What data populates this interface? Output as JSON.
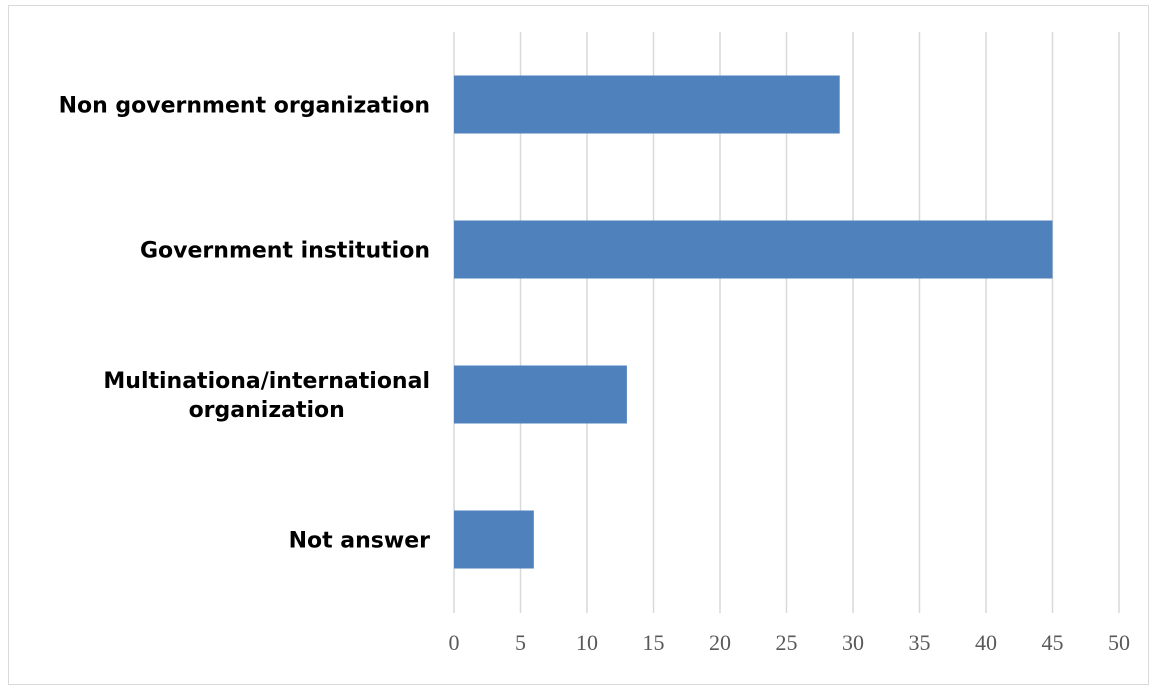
{
  "chart_data": {
    "type": "bar",
    "orientation": "horizontal",
    "categories": [
      "Non government organization",
      "Government institution",
      "Multinationa/international organization",
      "Not answer"
    ],
    "category_label_lines": [
      [
        "Non government organization"
      ],
      [
        "Government institution"
      ],
      [
        "Multinationa/international",
        "organization"
      ],
      [
        "Not answer"
      ]
    ],
    "values": [
      29,
      45,
      13,
      6
    ],
    "xlim": [
      0,
      50
    ],
    "x_ticks": [
      "0",
      "5",
      "10",
      "15",
      "20",
      "25",
      "30",
      "35",
      "40",
      "45",
      "50"
    ],
    "title": "",
    "xlabel": "",
    "ylabel": "",
    "grid": "vertical",
    "legend": "none",
    "bar_color": "#4f81bd",
    "grid_color": "#d9d9d9"
  }
}
